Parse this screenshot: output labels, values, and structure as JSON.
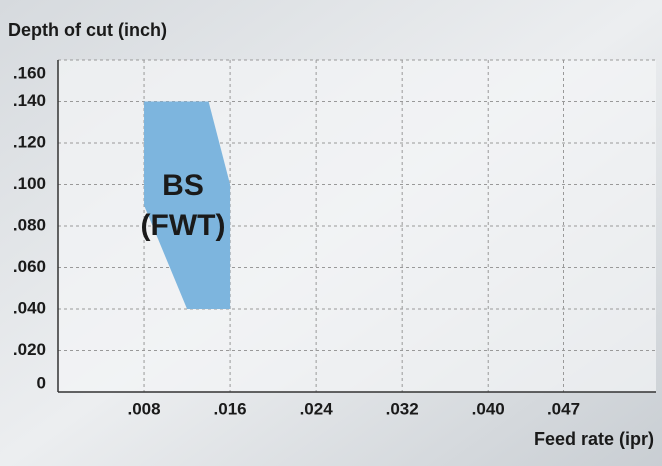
{
  "chart_data": {
    "type": "area",
    "ylabel": "Depth of cut (inch)",
    "xlabel": "Feed rate (ipr)",
    "annotation": [
      "BS",
      "(FWT)"
    ],
    "series": [
      {
        "color": "#7db5de",
        "x": [
          0.008,
          0.014,
          0.016,
          0.016,
          0.012,
          0.008
        ],
        "values": [
          0.14,
          0.14,
          0.1,
          0.04,
          0.04,
          0.09
        ]
      }
    ],
    "xlim": [
      0,
      0.0556
    ],
    "ylim": [
      0,
      0.16
    ],
    "xticks": [
      {
        "value": 0.008,
        "label": ".008"
      },
      {
        "value": 0.016,
        "label": ".016"
      },
      {
        "value": 0.024,
        "label": ".024"
      },
      {
        "value": 0.032,
        "label": ".032"
      },
      {
        "value": 0.04,
        "label": ".040"
      },
      {
        "value": 0.047,
        "label": ".047"
      }
    ],
    "yticks": [
      0,
      {
        "value": 0.02,
        "label": ".020"
      },
      {
        "value": 0.04,
        "label": ".040"
      },
      {
        "value": 0.06,
        "label": ".060"
      },
      {
        "value": 0.08,
        "label": ".080"
      },
      {
        "value": 0.1,
        "label": ".100"
      },
      {
        "value": 0.12,
        "label": ".120"
      },
      {
        "value": 0.14,
        "label": ".140"
      },
      {
        "value": 0.16,
        "label": ".160"
      }
    ],
    "grid": true
  }
}
